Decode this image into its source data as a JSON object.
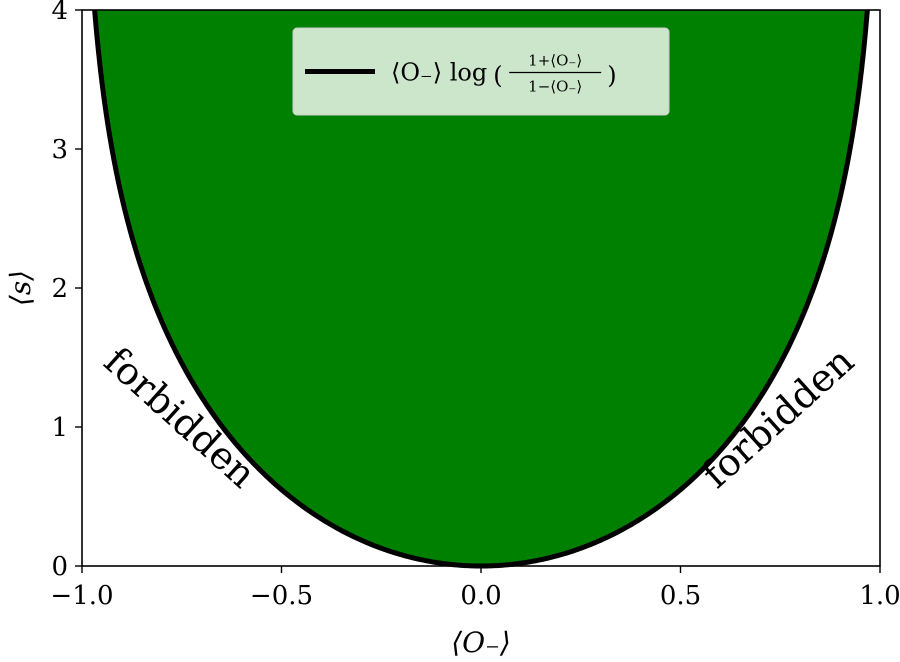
{
  "chart_data": {
    "type": "area",
    "xlabel": "⟨O₋⟩",
    "ylabel": "⟨s⟩",
    "xlim": [
      -1.0,
      1.0
    ],
    "ylim": [
      0,
      4
    ],
    "x_ticks": [
      -1.0,
      -0.5,
      0.0,
      0.5,
      1.0
    ],
    "x_tick_labels": [
      "−1.0",
      "−0.5",
      "0.0",
      "0.5",
      "1.0"
    ],
    "y_ticks": [
      0,
      1,
      2,
      3,
      4
    ],
    "y_tick_labels": [
      "0",
      "1",
      "2",
      "3",
      "4"
    ],
    "series": [
      {
        "name": "⟨O₋⟩ log ((1+⟨O₋⟩)/(1−⟨O₋⟩))",
        "legend": {
          "prefix": "⟨O₋⟩ log",
          "numerator": "1+⟨O₋⟩",
          "denominator": "1−⟨O₋⟩"
        },
        "function": "x*log((1+x)/(1-x))",
        "color": "#000000",
        "fill_color": "#008000",
        "fill": "above-curve"
      }
    ],
    "annotations": [
      {
        "text": "forbidden",
        "x": -0.76,
        "y": 1.05,
        "rotation": 42
      },
      {
        "text": "forbidden",
        "x": 0.75,
        "y": 1.05,
        "rotation": -42
      }
    ],
    "legend_position": "top-center",
    "grid": false
  }
}
